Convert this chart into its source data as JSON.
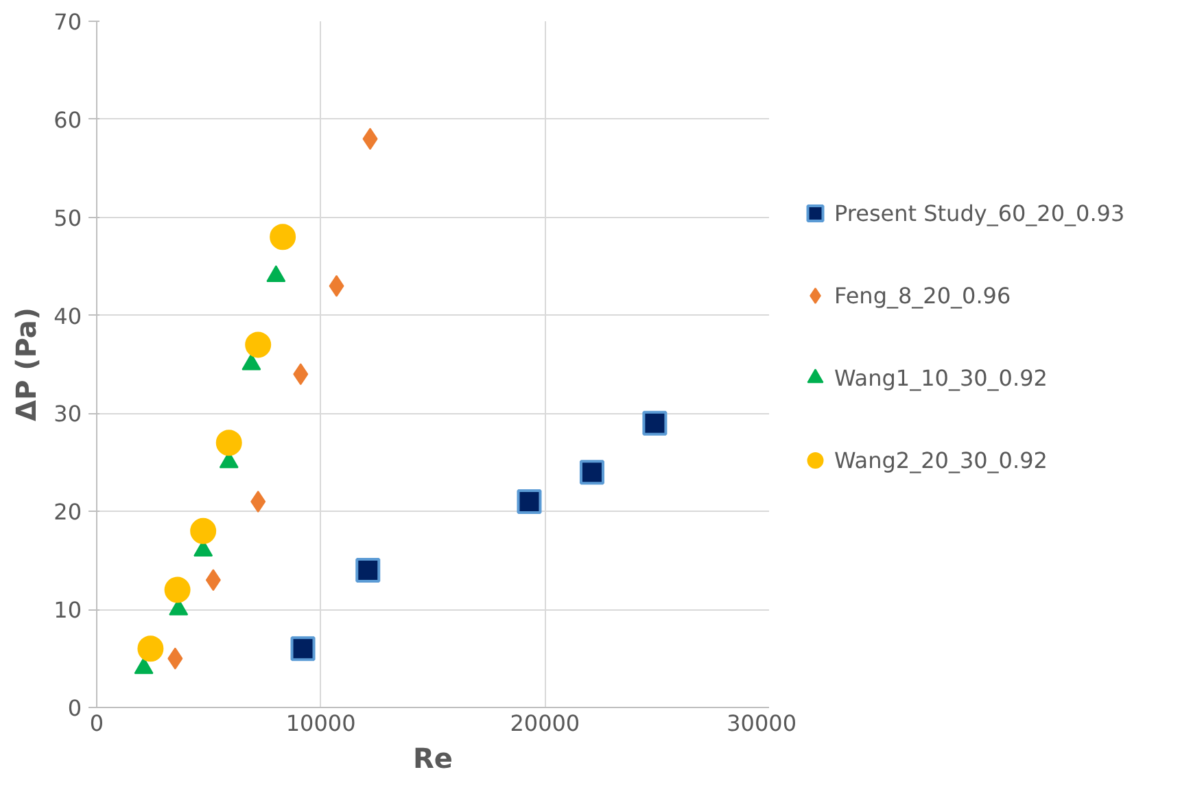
{
  "chart_data": {
    "type": "scatter",
    "xlabel": "Re",
    "ylabel": "ΔP (Pa)",
    "xlim": [
      0,
      30000
    ],
    "xticks": [
      0,
      10000,
      20000,
      30000
    ],
    "ylim": [
      0,
      70
    ],
    "yticks": [
      0,
      10,
      20,
      30,
      40,
      50,
      60,
      70
    ],
    "grid": true,
    "legend": "right",
    "series": [
      {
        "name": "Present Study_60_20_0.93",
        "color": "#002060",
        "marker": "square",
        "x": [
          9200,
          12100,
          19300,
          22100,
          24900
        ],
        "values": [
          6,
          14,
          21,
          24,
          29
        ]
      },
      {
        "name": "Feng_8_20_0.96",
        "color": "#ed7d31",
        "marker": "diamond",
        "x": [
          3500,
          5200,
          7200,
          9100,
          10700,
          12200
        ],
        "values": [
          5,
          13,
          21,
          34,
          43,
          58
        ]
      },
      {
        "name": "Wang1_10_30_0.92",
        "color": "#00b050",
        "marker": "triangle",
        "x": [
          2100,
          3650,
          4750,
          5900,
          6900,
          8000
        ],
        "values": [
          4,
          10,
          16,
          25,
          35,
          44
        ]
      },
      {
        "name": "Wang2_20_30_0.92",
        "color": "#ffc000",
        "marker": "circle",
        "x": [
          2400,
          3600,
          4750,
          5900,
          7200,
          8300
        ],
        "values": [
          6,
          12,
          18,
          27,
          37,
          48
        ]
      }
    ]
  }
}
